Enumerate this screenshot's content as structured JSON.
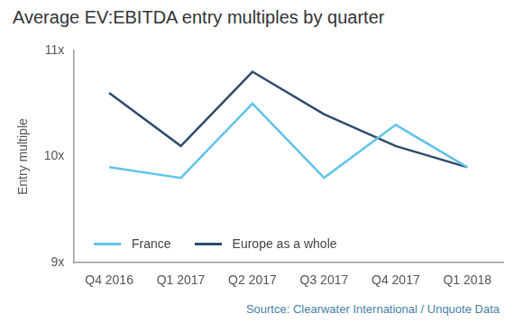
{
  "chart_data": {
    "type": "line",
    "title": "Average EV:EBITDA entry multiples by quarter",
    "y_label": "Entry multiple",
    "source": "Sourtce: Clearwater International / Unquote Data",
    "categories": [
      "Q4 2016",
      "Q1 2017",
      "Q2 2017",
      "Q3 2017",
      "Q4 2017",
      "Q1 2018"
    ],
    "series": [
      {
        "name": "France",
        "color": "#62c3e9",
        "values": [
          9.9,
          9.8,
          10.5,
          9.8,
          10.3,
          9.9
        ]
      },
      {
        "name": "Europe as a whole",
        "color": "#2d4b6d",
        "values": [
          10.6,
          10.1,
          10.8,
          10.4,
          10.1,
          9.9
        ]
      }
    ],
    "ylim": [
      9,
      11
    ],
    "yticks": [
      {
        "value": 9,
        "label": "9x"
      },
      {
        "value": 10,
        "label": "10x"
      },
      {
        "value": 11,
        "label": "11x"
      }
    ],
    "grid": false,
    "legend": "lower left"
  }
}
